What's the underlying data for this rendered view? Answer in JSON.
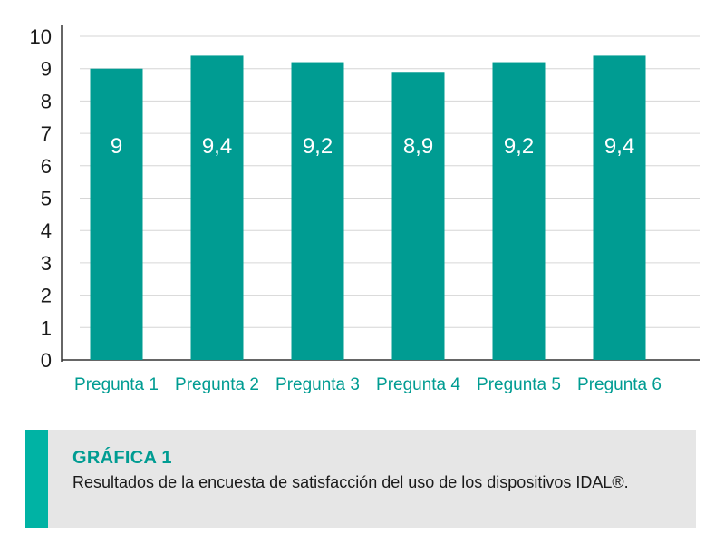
{
  "colors": {
    "bar": "#009c92",
    "accent": "#00b3a4",
    "tick_label": "#1a1a1a",
    "category_label": "#009c92",
    "grid": "#d6d6d6",
    "axis": "#333333",
    "value_label": "#ffffff"
  },
  "chart_data": {
    "type": "bar",
    "categories": [
      "Pregunta 1",
      "Pregunta 2",
      "Pregunta 3",
      "Pregunta 4",
      "Pregunta 5",
      "Pregunta 6"
    ],
    "values": [
      9,
      9.4,
      9.2,
      8.9,
      9.2,
      9.4
    ],
    "data_labels": [
      "9",
      "9,4",
      "9,2",
      "8,9",
      "9,2",
      "9,4"
    ],
    "y_ticks": [
      "0",
      "1",
      "2",
      "3",
      "4",
      "5",
      "6",
      "7",
      "8",
      "9",
      "10"
    ],
    "ylim": [
      0,
      10
    ],
    "grid": true,
    "legend": "none"
  },
  "caption": {
    "title": "GRÁFICA 1",
    "text": "Resultados de la encuesta de satisfacción del uso de los dispositivos IDAL®."
  }
}
